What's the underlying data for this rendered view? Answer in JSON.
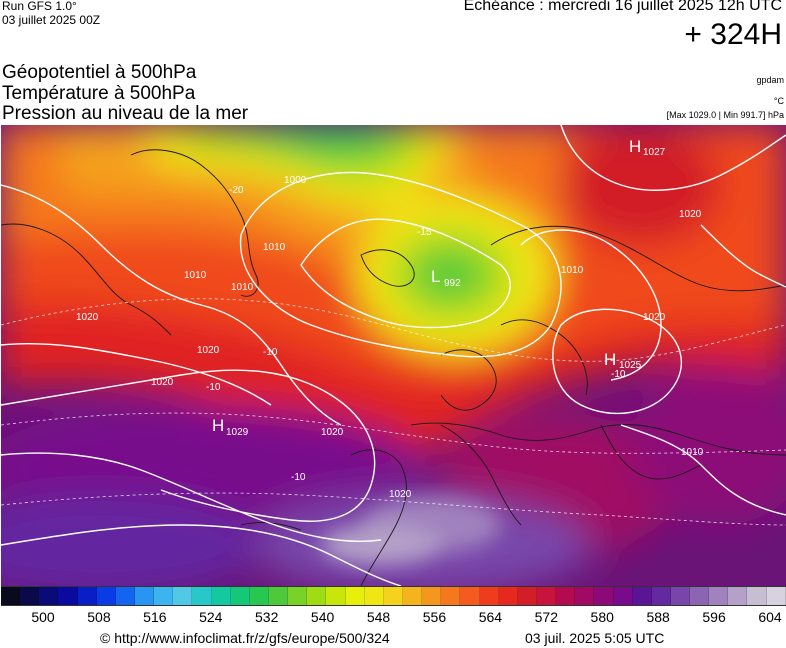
{
  "header": {
    "run": "Run GFS 1.0°",
    "run_date": "03 juillet 2025 00Z",
    "valid_time": "Echéance : mercredi 16 juillet 2025 12h UTC",
    "lead_time": "+ 324H"
  },
  "fields": [
    "Géopotentiel à 500hPa",
    "Température à 500hPa",
    "Pression au niveau de la mer"
  ],
  "units": {
    "geopotential": "gpdam",
    "temperature": "°C",
    "pressure_extremes": "[Max 1029.0 | Min 991.7] hPa"
  },
  "map": {
    "region": "Europe / North Atlantic",
    "pressure_centers": [
      {
        "type": "H",
        "value": "1027"
      },
      {
        "type": "L",
        "value": "992"
      },
      {
        "type": "H",
        "value": "1025"
      },
      {
        "type": "H",
        "value": "1029"
      }
    ],
    "isobar_labels": [
      "1000",
      "1010",
      "1010",
      "1010",
      "1010",
      "1020",
      "1020",
      "1020",
      "1020",
      "1020",
      "1020",
      "1010",
      "1020"
    ],
    "temperature_labels": [
      "-20",
      "-15",
      "-10",
      "-10",
      "-10",
      "-10"
    ]
  },
  "colorbar": {
    "tick_labels": [
      "500",
      "508",
      "516",
      "524",
      "532",
      "540",
      "548",
      "556",
      "564",
      "572",
      "580",
      "588",
      "596",
      "604"
    ],
    "colors": [
      "#0a0a1e",
      "#0a0a4a",
      "#0a0a78",
      "#0a0aa0",
      "#0a1ec8",
      "#0a3ce6",
      "#1464f0",
      "#2896f0",
      "#3cb4f0",
      "#50c8e6",
      "#28c8c8",
      "#14c8a0",
      "#14c878",
      "#28c850",
      "#50c83c",
      "#78d228",
      "#a0dc14",
      "#c8e60a",
      "#e6f00a",
      "#f0e614",
      "#f5d21e",
      "#f5b41e",
      "#f5961e",
      "#f5781e",
      "#f55a1e",
      "#f03c1e",
      "#e6281e",
      "#d21e28",
      "#c8143c",
      "#b40a50",
      "#a00a64",
      "#8c0a78",
      "#780a8c",
      "#5a1496",
      "#6428a0",
      "#7846aa",
      "#8c64b4",
      "#a082be",
      "#b4a0c8",
      "#c8bed2",
      "#d8d2e0"
    ]
  },
  "footer": {
    "url": "© http://www.infoclimat.fr/z/gfs/europe/500/324",
    "timestamp": "03 juil. 2025  5:05 UTC"
  }
}
